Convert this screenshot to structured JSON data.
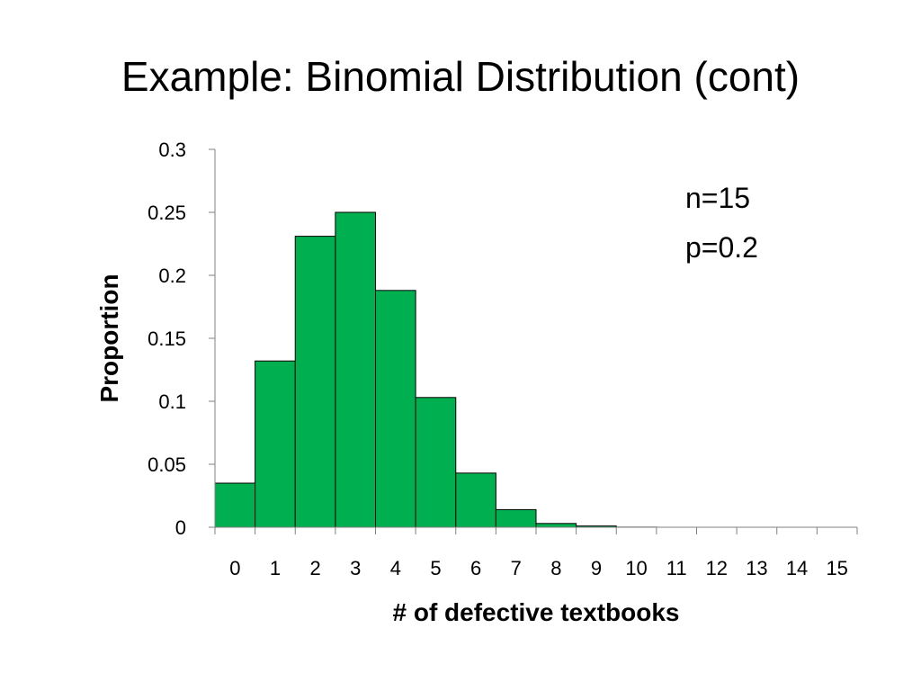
{
  "slide": {
    "title": "Example: Binomial Distribution (cont)"
  },
  "chart_data": {
    "type": "bar",
    "categories": [
      "0",
      "1",
      "2",
      "3",
      "4",
      "5",
      "6",
      "7",
      "8",
      "9",
      "10",
      "11",
      "12",
      "13",
      "14",
      "15"
    ],
    "values": [
      0.035,
      0.132,
      0.231,
      0.25,
      0.188,
      0.103,
      0.043,
      0.014,
      0.003,
      0.001,
      0.0001,
      0.0,
      0.0,
      0.0,
      0.0,
      0.0
    ],
    "xlabel": "# of defective textbooks",
    "ylabel": "Proportion",
    "ylim": [
      0,
      0.3
    ],
    "yticks": [
      "0",
      "0.05",
      "0.1",
      "0.15",
      "0.2",
      "0.25",
      "0.3"
    ],
    "annotations": [
      "n=15",
      "p=0.2"
    ],
    "grid": false,
    "legend": "none",
    "bar_color": "#00b050",
    "bar_edge_color": "#000000"
  }
}
